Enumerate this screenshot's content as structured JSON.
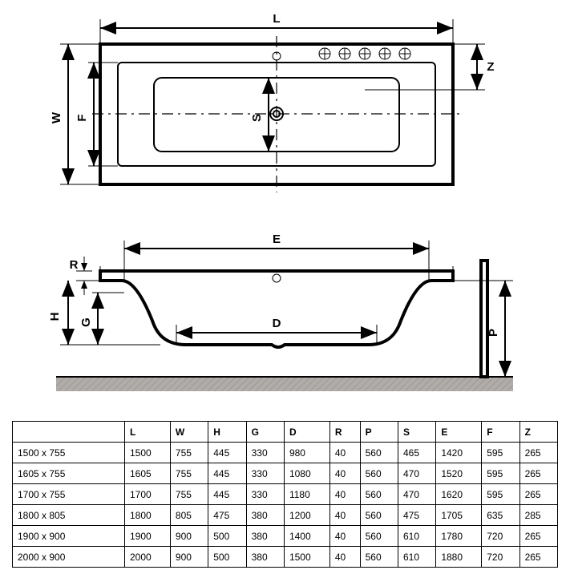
{
  "diagram": {
    "type": "engineering-drawing",
    "stroke_color": "#000000",
    "background_color": "#ffffff",
    "ground_color": "#b0aca9",
    "top_view": {
      "labels": {
        "L": "L",
        "W": "W",
        "F": "F",
        "S": "S",
        "Z": "Z"
      }
    },
    "side_view": {
      "labels": {
        "E": "E",
        "R": "R",
        "H": "H",
        "G": "G",
        "D": "D",
        "P": "P"
      }
    }
  },
  "table": {
    "columns": [
      "",
      "L",
      "W",
      "H",
      "G",
      "D",
      "R",
      "P",
      "S",
      "E",
      "F",
      "Z"
    ],
    "rows": [
      [
        "1500 x 755",
        "1500",
        "755",
        "445",
        "330",
        "980",
        "40",
        "560",
        "465",
        "1420",
        "595",
        "265"
      ],
      [
        "1605 x 755",
        "1605",
        "755",
        "445",
        "330",
        "1080",
        "40",
        "560",
        "470",
        "1520",
        "595",
        "265"
      ],
      [
        "1700 x 755",
        "1700",
        "755",
        "445",
        "330",
        "1180",
        "40",
        "560",
        "470",
        "1620",
        "595",
        "265"
      ],
      [
        "1800 x 805",
        "1800",
        "805",
        "475",
        "380",
        "1200",
        "40",
        "560",
        "475",
        "1705",
        "635",
        "285"
      ],
      [
        "1900 x 900",
        "1900",
        "900",
        "500",
        "380",
        "1400",
        "40",
        "560",
        "610",
        "1780",
        "720",
        "265"
      ],
      [
        "2000 x 900",
        "2000",
        "900",
        "500",
        "380",
        "1500",
        "40",
        "560",
        "610",
        "1880",
        "720",
        "265"
      ]
    ],
    "column_header_fontweight": "bold",
    "cell_fontsize": 12,
    "border_color": "#000000"
  }
}
